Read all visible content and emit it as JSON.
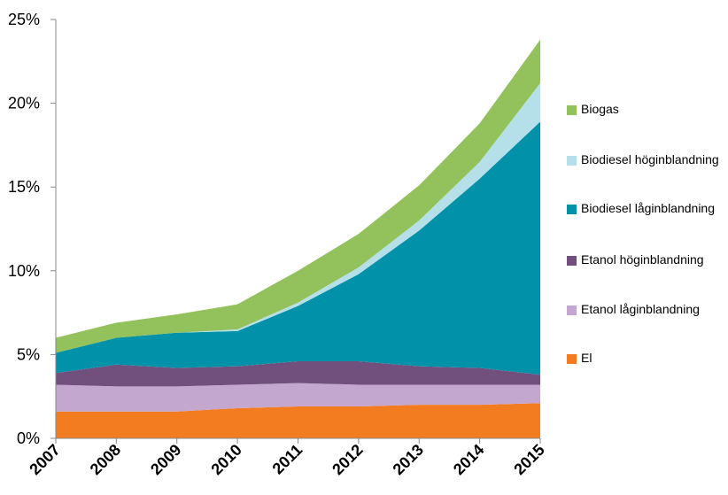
{
  "chart_data": {
    "type": "stacked_area",
    "x": [
      2007,
      2008,
      2009,
      2010,
      2011,
      2012,
      2013,
      2014,
      2015
    ],
    "series": [
      {
        "name": "El",
        "color": "#f47c20",
        "values": [
          1.6,
          1.6,
          1.6,
          1.8,
          1.9,
          1.9,
          2.0,
          2.0,
          2.1
        ]
      },
      {
        "name": "Etanol låginblandning",
        "color": "#c3a7cf",
        "values": [
          1.6,
          1.5,
          1.5,
          1.4,
          1.4,
          1.3,
          1.2,
          1.2,
          1.1
        ]
      },
      {
        "name": "Etanol höginblandning",
        "color": "#72507e",
        "values": [
          0.7,
          1.3,
          1.1,
          1.1,
          1.3,
          1.4,
          1.1,
          1.0,
          0.6
        ]
      },
      {
        "name": "Biodiesel låginblandning",
        "color": "#0191a8",
        "values": [
          1.2,
          1.6,
          2.1,
          2.1,
          3.3,
          5.2,
          8.1,
          11.3,
          15.1
        ]
      },
      {
        "name": "Biodiesel höginblandning",
        "color": "#b5e0ea",
        "values": [
          0,
          0,
          0,
          0.1,
          0.2,
          0.4,
          0.6,
          1.0,
          2.3
        ]
      },
      {
        "name": "Biogas",
        "color": "#93c15b",
        "values": [
          0.9,
          0.9,
          1.1,
          1.5,
          1.9,
          2.0,
          2.1,
          2.3,
          2.6
        ]
      }
    ],
    "xlim": [
      2007,
      2015
    ],
    "ylim": [
      0,
      25
    ],
    "yticks": [
      {
        "value": 0,
        "label": "0%"
      },
      {
        "value": 5,
        "label": "5%"
      },
      {
        "value": 10,
        "label": "10%"
      },
      {
        "value": 15,
        "label": "15%"
      },
      {
        "value": 20,
        "label": "20%"
      },
      {
        "value": 25,
        "label": "25%"
      }
    ],
    "legend": "right"
  }
}
